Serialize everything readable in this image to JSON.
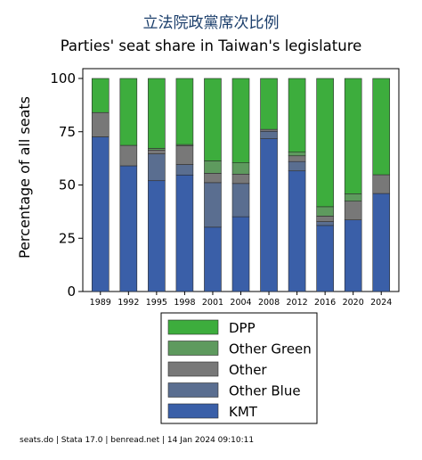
{
  "title_zh": "立法院政黨席次比例",
  "footer": "seats.do | Stata 17.0 | benread.net | 14 Jan 2024 09:10:11",
  "chart_data": {
    "type": "bar",
    "stacked": true,
    "title": "Parties' seat share in Taiwan's legislature",
    "ylabel": "Percentage of all seats",
    "xlabel": "",
    "ylim": [
      0,
      100
    ],
    "yticks": [
      0,
      25,
      50,
      75,
      100
    ],
    "categories": [
      "1989",
      "1992",
      "1995",
      "1998",
      "2001",
      "2004",
      "2008",
      "2012",
      "2016",
      "2020",
      "2024"
    ],
    "series": [
      {
        "name": "KMT",
        "color": "#3a5fa8",
        "values": [
          72.6,
          59.0,
          52.0,
          54.7,
          30.2,
          35.1,
          71.7,
          56.6,
          31.0,
          33.6,
          46.0
        ]
      },
      {
        "name": "Other Blue",
        "color": "#5a6e90",
        "values": [
          0,
          0,
          12.6,
          4.9,
          20.9,
          15.6,
          3.5,
          4.4,
          1.8,
          0,
          0
        ]
      },
      {
        "name": "Other",
        "color": "#787878",
        "values": [
          11.4,
          9.6,
          1.8,
          8.9,
          4.4,
          4.4,
          0.9,
          2.7,
          2.6,
          8.8,
          8.8
        ]
      },
      {
        "name": "Other Green",
        "color": "#5e9a5e",
        "values": [
          0,
          0,
          0.8,
          0.5,
          5.8,
          5.3,
          0,
          1.7,
          4.4,
          3.5,
          0
        ]
      },
      {
        "name": "DPP",
        "color": "#3dad3d",
        "values": [
          16.0,
          31.4,
          32.8,
          31.0,
          38.7,
          39.6,
          23.9,
          34.6,
          60.2,
          54.1,
          45.2
        ]
      }
    ],
    "legend_order": [
      "DPP",
      "Other Green",
      "Other",
      "Other Blue",
      "KMT"
    ],
    "legend_position": "bottom",
    "grid": false
  }
}
